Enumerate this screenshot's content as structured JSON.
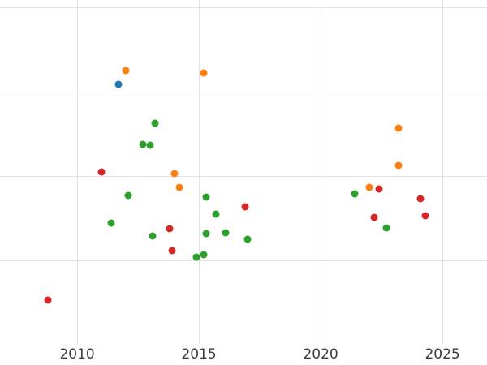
{
  "chart_data": {
    "type": "scatter",
    "title": "",
    "xlabel": "",
    "ylabel": "",
    "xlim": [
      2006.83,
      2026.83
    ],
    "ylim": [
      -0.24,
      4.09
    ],
    "grid": true,
    "legend_position": "none",
    "x_ticks": [
      {
        "value": 2010,
        "label": "2010"
      },
      {
        "value": 2015,
        "label": "2015"
      },
      {
        "value": 2020,
        "label": "2020"
      },
      {
        "value": 2025,
        "label": "2025"
      }
    ],
    "y_gridlines": [
      1,
      2,
      3,
      4
    ],
    "series": [
      {
        "name": "blue",
        "color": "#1f77b4",
        "points": [
          [
            2011.7,
            3.09
          ]
        ]
      },
      {
        "name": "orange",
        "color": "#ff7f0e",
        "points": [
          [
            2012.0,
            3.25
          ],
          [
            2015.2,
            3.22
          ],
          [
            2014.0,
            2.03
          ],
          [
            2014.2,
            1.87
          ],
          [
            2022.0,
            1.87
          ],
          [
            2023.2,
            2.57
          ],
          [
            2023.2,
            2.13
          ]
        ]
      },
      {
        "name": "green",
        "color": "#2ca02c",
        "points": [
          [
            2013.2,
            2.63
          ],
          [
            2012.7,
            2.38
          ],
          [
            2013.0,
            2.37
          ],
          [
            2012.1,
            1.77
          ],
          [
            2015.3,
            1.75
          ],
          [
            2015.7,
            1.55
          ],
          [
            2011.4,
            1.44
          ],
          [
            2013.1,
            1.29
          ],
          [
            2014.9,
            1.04
          ],
          [
            2015.2,
            1.07
          ],
          [
            2015.3,
            1.32
          ],
          [
            2016.1,
            1.33
          ],
          [
            2017.0,
            1.25
          ],
          [
            2021.4,
            1.79
          ],
          [
            2022.7,
            1.39
          ]
        ]
      },
      {
        "name": "red",
        "color": "#d62728",
        "points": [
          [
            2008.8,
            0.53
          ],
          [
            2011.0,
            2.05
          ],
          [
            2013.8,
            1.38
          ],
          [
            2013.9,
            1.12
          ],
          [
            2016.9,
            1.64
          ],
          [
            2022.4,
            1.85
          ],
          [
            2022.2,
            1.51
          ],
          [
            2024.1,
            1.73
          ],
          [
            2024.3,
            1.53
          ]
        ]
      }
    ]
  },
  "styles": {
    "background": "#ffffff",
    "grid_color": "#e2e2e2",
    "tick_label_color": "#3d3d3d"
  }
}
